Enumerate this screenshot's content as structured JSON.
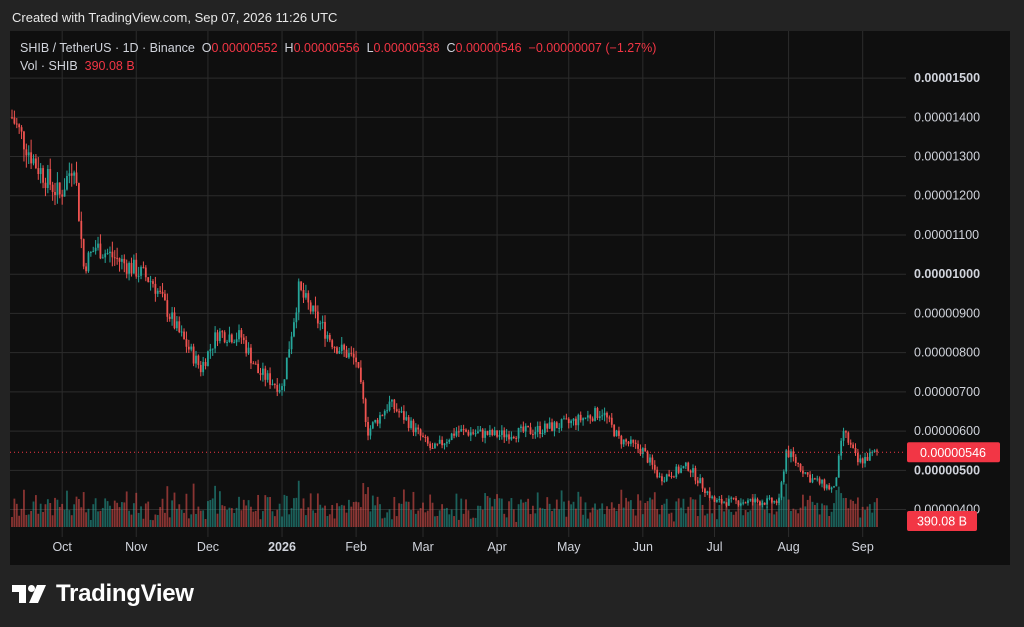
{
  "header": {
    "created_text": "Created with TradingView.com, Sep 07, 2026 11:26 UTC"
  },
  "legend": {
    "symbol": "SHIB / TetherUS · 1D · Binance",
    "open_label": "O",
    "open": "0.00000552",
    "high_label": "H",
    "high": "0.00000556",
    "low_label": "L",
    "low": "0.00000538",
    "close_label": "C",
    "close": "0.00000546",
    "change": "−0.00000007 (−1.27%)",
    "vol_label": "Vol · SHIB",
    "vol": "390.08 B"
  },
  "price_axis": {
    "labels": [
      "0.00001500",
      "0.00001400",
      "0.00001300",
      "0.00001200",
      "0.00001100",
      "0.00001000",
      "0.00000900",
      "0.00000800",
      "0.00000700",
      "0.00000600",
      "0.00000500",
      "0.00000400"
    ],
    "ticks": [
      1500,
      1400,
      1300,
      1200,
      1100,
      1000,
      900,
      800,
      700,
      600,
      500,
      400
    ],
    "current_price_label": "0.00000546",
    "current_volume_label": "390.08 B"
  },
  "colors": {
    "up": "#26a69a",
    "down": "#ef5350",
    "background": "#0f0f0f",
    "grid": "#2c2c2c",
    "text": "#d1d4dc",
    "price_line": "#f23645",
    "badge": "#f23645"
  },
  "brand": {
    "name": "TradingView",
    "icon": "tradingview-logo-icon"
  },
  "chart_data": {
    "type": "candlestick",
    "title": "SHIB / TetherUS · 1D · Binance",
    "x_labels": [
      "Oct",
      "Nov",
      "Dec",
      "2026",
      "Feb",
      "Mar",
      "Apr",
      "May",
      "Jun",
      "Jul",
      "Aug",
      "Sep"
    ],
    "x_dates": [
      "2025-10-01",
      "2025-11-01",
      "2025-12-01",
      "2026-01-01",
      "2026-02-01",
      "2026-03-01",
      "2026-04-01",
      "2026-05-01",
      "2026-06-01",
      "2026-07-01",
      "2026-08-01",
      "2026-09-01"
    ],
    "date_range": [
      "2025-09-10",
      "2026-09-07"
    ],
    "ylim": [
      3.3e-06,
      1.62e-05
    ],
    "y_unit": "USDT",
    "current_close": 5.46e-06,
    "last_volume": "390.08 B",
    "close_path": [
      {
        "date": "2025-09-10",
        "close": 1.4e-05
      },
      {
        "date": "2025-09-20",
        "close": 1.28e-05
      },
      {
        "date": "2025-09-30",
        "close": 1.2e-05
      },
      {
        "date": "2025-10-06",
        "close": 1.29e-05
      },
      {
        "date": "2025-10-10",
        "close": 1.02e-05
      },
      {
        "date": "2025-10-15",
        "close": 1.07e-05
      },
      {
        "date": "2025-11-01",
        "close": 1.01e-05
      },
      {
        "date": "2025-11-08",
        "close": 9.8e-06
      },
      {
        "date": "2025-11-18",
        "close": 8.6e-06
      },
      {
        "date": "2025-11-28",
        "close": 7.6e-06
      },
      {
        "date": "2025-12-05",
        "close": 8.5e-06
      },
      {
        "date": "2025-12-15",
        "close": 8.4e-06
      },
      {
        "date": "2025-12-22",
        "close": 7.5e-06
      },
      {
        "date": "2026-01-01",
        "close": 7.1e-06
      },
      {
        "date": "2026-01-08",
        "close": 9.6e-06
      },
      {
        "date": "2026-01-15",
        "close": 8.9e-06
      },
      {
        "date": "2026-01-23",
        "close": 8.2e-06
      },
      {
        "date": "2026-02-01",
        "close": 7.8e-06
      },
      {
        "date": "2026-02-06",
        "close": 6e-06
      },
      {
        "date": "2026-02-15",
        "close": 6.7e-06
      },
      {
        "date": "2026-02-22",
        "close": 6.3e-06
      },
      {
        "date": "2026-03-05",
        "close": 5.5e-06
      },
      {
        "date": "2026-03-15",
        "close": 6e-06
      },
      {
        "date": "2026-04-01",
        "close": 5.9e-06
      },
      {
        "date": "2026-04-15",
        "close": 6e-06
      },
      {
        "date": "2026-05-01",
        "close": 6.2e-06
      },
      {
        "date": "2026-05-15",
        "close": 6.5e-06
      },
      {
        "date": "2026-05-22",
        "close": 5.8e-06
      },
      {
        "date": "2026-06-01",
        "close": 5.5e-06
      },
      {
        "date": "2026-06-08",
        "close": 4.8e-06
      },
      {
        "date": "2026-06-20",
        "close": 5.1e-06
      },
      {
        "date": "2026-07-01",
        "close": 4.2e-06
      },
      {
        "date": "2026-07-15",
        "close": 4.2e-06
      },
      {
        "date": "2026-07-28",
        "close": 4.2e-06
      },
      {
        "date": "2026-07-31",
        "close": 5.5e-06
      },
      {
        "date": "2026-08-10",
        "close": 4.8e-06
      },
      {
        "date": "2026-08-20",
        "close": 4.5e-06
      },
      {
        "date": "2026-08-24",
        "close": 6e-06
      },
      {
        "date": "2026-08-30",
        "close": 5.2e-06
      },
      {
        "date": "2026-09-07",
        "close": 5.46e-06
      }
    ]
  }
}
